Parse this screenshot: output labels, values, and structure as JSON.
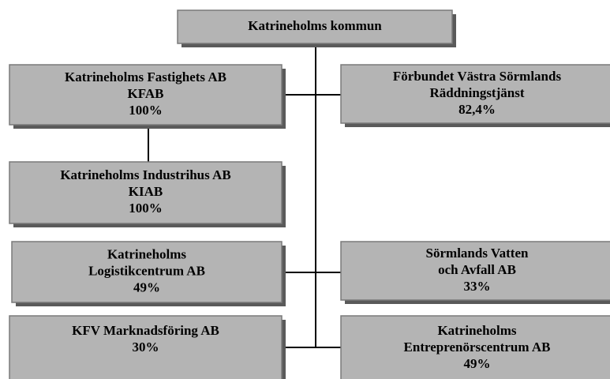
{
  "nodes": [
    {
      "lines": [
        "Katrineholms kommun"
      ]
    },
    {
      "lines": [
        "Katrineholms Fastighets AB",
        "KFAB",
        "100%"
      ]
    },
    {
      "lines": [
        "Förbundet Västra Sörmlands",
        "Räddningstjänst",
        "82,4%"
      ]
    },
    {
      "lines": [
        "Katrineholms Industrihus AB",
        "KIAB",
        "100%"
      ]
    },
    {
      "lines": [
        "Katrineholms",
        "Logistikcentrum AB",
        "49%"
      ]
    },
    {
      "lines": [
        "Sörmlands Vatten",
        "och Avfall AB",
        "33%"
      ]
    },
    {
      "lines": [
        "KFV Marknadsföring AB",
        "30%"
      ]
    },
    {
      "lines": [
        "Katrineholms",
        "Entreprenörscentrum AB",
        "49%"
      ]
    }
  ]
}
